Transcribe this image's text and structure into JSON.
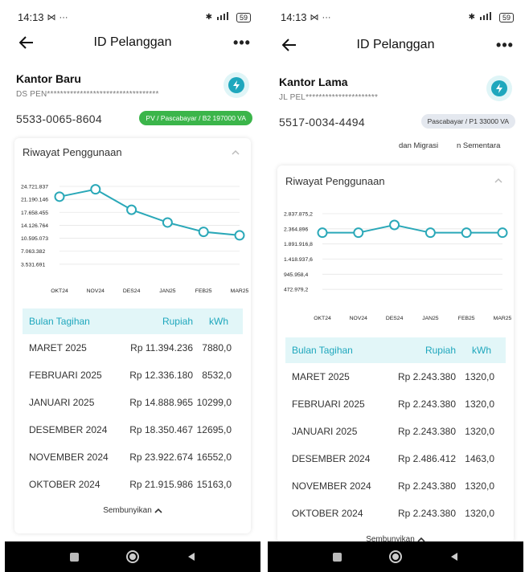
{
  "phones": [
    {
      "status": {
        "time": "14:13",
        "battery": "59"
      },
      "appbar": {
        "title": "ID Pelanggan",
        "more": "•••"
      },
      "customer": {
        "name": "Kantor Baru",
        "address": "DS PEN**********************************",
        "id_number": "5533-0065-8604",
        "tariff": "PV / Pascabayar / B2 197000 VA"
      },
      "migrasi": null,
      "card": {
        "title": "Riwayat Penggunaan",
        "hide_label": "Sembunyikan"
      },
      "chart_data": {
        "type": "line",
        "categories": [
          "OKT24",
          "NOV24",
          "DES24",
          "JAN25",
          "FEB25",
          "MAR25"
        ],
        "values": [
          21915986,
          23922674,
          18350467,
          14888965,
          12336180,
          11394236
        ],
        "y_ticks": [
          "24.721.837",
          "21.190.146",
          "17.658.455",
          "14.126.764",
          "10.595.073",
          "7.063.382",
          "3.531.691"
        ],
        "ylim": [
          0,
          24721837
        ],
        "grid": true,
        "color": "#2aa8b8"
      },
      "table": {
        "headers": {
          "month": "Bulan Tagihan",
          "rupiah": "Rupiah",
          "kwh": "kWh"
        },
        "rows": [
          {
            "month": "MARET 2025",
            "rupiah": "Rp 11.394.236",
            "kwh": "7880,0"
          },
          {
            "month": "FEBRUARI 2025",
            "rupiah": "Rp 12.336.180",
            "kwh": "8532,0"
          },
          {
            "month": "JANUARI 2025",
            "rupiah": "Rp 14.888.965",
            "kwh": "10299,0"
          },
          {
            "month": "DESEMBER 2024",
            "rupiah": "Rp 18.350.467",
            "kwh": "12695,0"
          },
          {
            "month": "NOVEMBER 2024",
            "rupiah": "Rp 23.922.674",
            "kwh": "16552,0"
          },
          {
            "month": "OKTOBER 2024",
            "rupiah": "Rp 21.915.986",
            "kwh": "15163,0"
          }
        ]
      }
    },
    {
      "status": {
        "time": "14:13",
        "battery": "59"
      },
      "appbar": {
        "title": "ID Pelanggan",
        "more": "•••"
      },
      "customer": {
        "name": "Kantor Lama",
        "address": "JL PEL**********************",
        "id_number": "5517-0034-4494",
        "tariff": "Pascabayar / P1 33000 VA"
      },
      "migrasi": {
        "left": "dan Migrasi",
        "right": "n Sementara"
      },
      "card": {
        "title": "Riwayat Penggunaan",
        "hide_label": "Sembunyikan"
      },
      "chart_data": {
        "type": "line",
        "categories": [
          "OKT24",
          "NOV24",
          "DES24",
          "JAN25",
          "FEB25",
          "MAR25"
        ],
        "values": [
          2243380,
          2243380,
          2486412,
          2243380,
          2243380,
          2243380
        ],
        "y_ticks": [
          "2.837.875,2",
          "2.364.896",
          "1.891.916,8",
          "1.418.937,6",
          "945.958,4",
          "472.979,2"
        ],
        "ylim": [
          0,
          2837875.2
        ],
        "grid": true,
        "color": "#2aa8b8"
      },
      "table": {
        "headers": {
          "month": "Bulan Tagihan",
          "rupiah": "Rupiah",
          "kwh": "kWh"
        },
        "rows": [
          {
            "month": "MARET 2025",
            "rupiah": "Rp 2.243.380",
            "kwh": "1320,0"
          },
          {
            "month": "FEBRUARI 2025",
            "rupiah": "Rp 2.243.380",
            "kwh": "1320,0"
          },
          {
            "month": "JANUARI 2025",
            "rupiah": "Rp 2.243.380",
            "kwh": "1320,0"
          },
          {
            "month": "DESEMBER 2024",
            "rupiah": "Rp 2.486.412",
            "kwh": "1463,0"
          },
          {
            "month": "NOVEMBER 2024",
            "rupiah": "Rp 2.243.380",
            "kwh": "1320,0"
          },
          {
            "month": "OKTOBER 2024",
            "rupiah": "Rp 2.243.380",
            "kwh": "1320,0"
          }
        ]
      }
    }
  ]
}
